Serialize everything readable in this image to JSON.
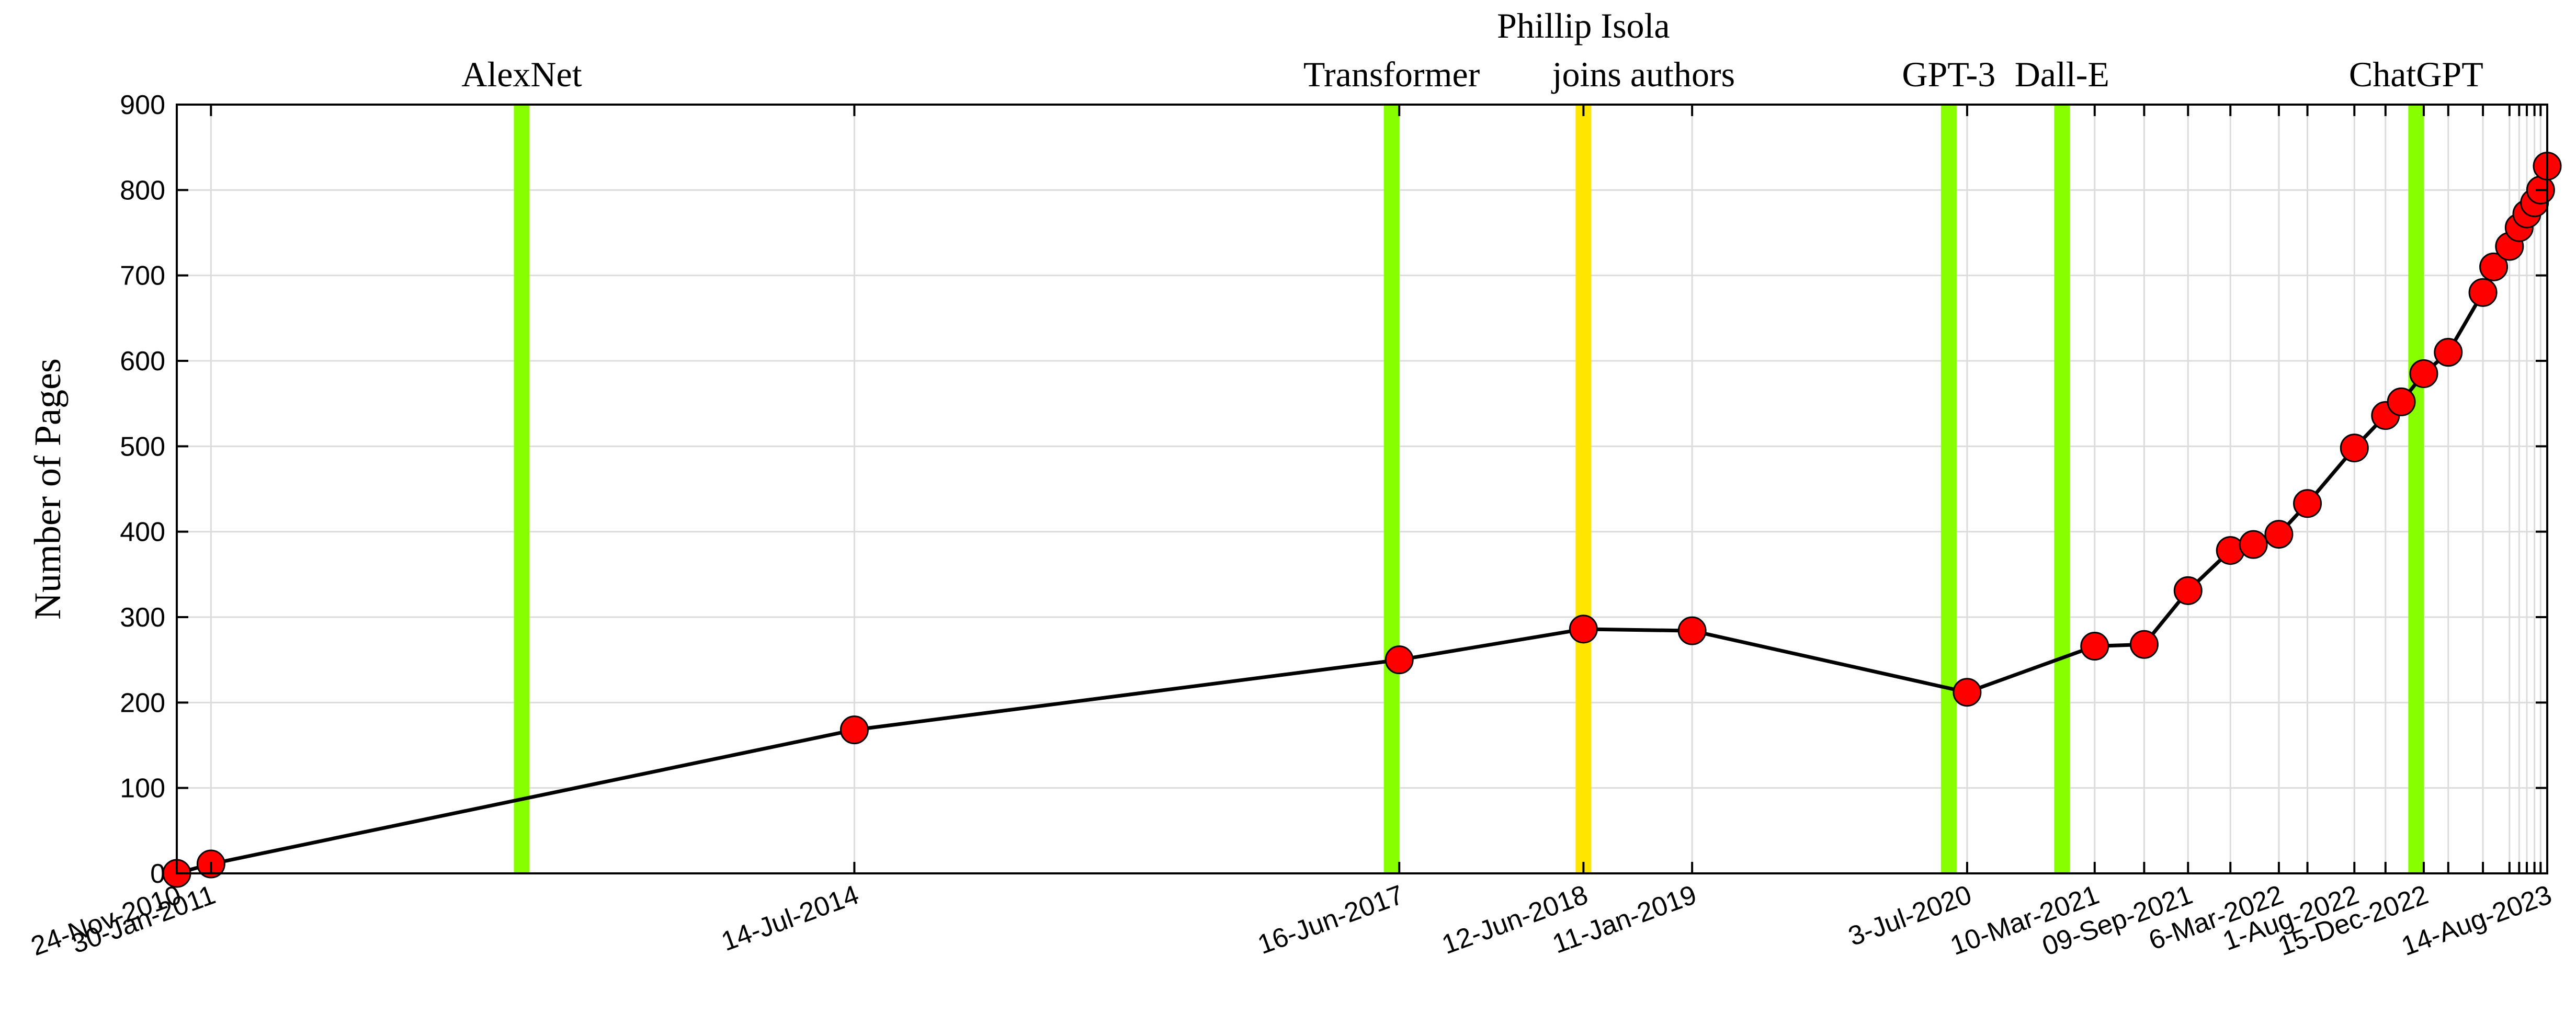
{
  "chart_data": {
    "type": "line",
    "title": "",
    "xlabel": "",
    "ylabel": "Number of Pages",
    "ylim": [
      0,
      900
    ],
    "yticks": [
      0,
      100,
      200,
      300,
      400,
      500,
      600,
      700,
      800,
      900
    ],
    "xlim": [
      "2010-11-24",
      "2023-08-14"
    ],
    "grid": true,
    "x_tick_dates": [
      "2010-11-24",
      "2011-01-30",
      "2014-07-14",
      "2017-06-16",
      "2018-06-12",
      "2019-01-11",
      "2020-07-03",
      "2021-03-10",
      "2021-09-09",
      "2022-03-06",
      "2022-08-01",
      "2022-12-15",
      "2023-08-14"
    ],
    "x_tick_labels": [
      "24-Nov-2010",
      "30-Jan-2011",
      "14-Jul-2014",
      "16-Jun-2017",
      "12-Jun-2018",
      "11-Jan-2019",
      "3-Jul-2020",
      "10-Mar-2021",
      "09-Sep-2021",
      "6-Mar-2022",
      "1-Aug-2022",
      "15-Dec-2022",
      "14-Aug-2023"
    ],
    "minor_x_tick_dates": [
      "2021-06-15",
      "2021-12-01",
      "2022-05-01",
      "2022-10-01",
      "2023-02-01",
      "2023-04-10",
      "2023-06-01",
      "2023-06-20",
      "2023-07-05",
      "2023-07-20",
      "2023-08-01"
    ],
    "series": [
      {
        "x": [
          "2010-11-24",
          "2011-01-30",
          "2014-07-14",
          "2017-06-16",
          "2018-06-12",
          "2019-01-11",
          "2020-07-03",
          "2021-03-10",
          "2021-06-15",
          "2021-09-09",
          "2021-12-01",
          "2022-01-15",
          "2022-03-06",
          "2022-05-01",
          "2022-08-01",
          "2022-10-01",
          "2022-11-01",
          "2022-12-15",
          "2023-02-01",
          "2023-04-10",
          "2023-05-01",
          "2023-06-01",
          "2023-06-20",
          "2023-07-05",
          "2023-07-20",
          "2023-08-01",
          "2023-08-14"
        ],
        "y": [
          0,
          11,
          168,
          250,
          286,
          284,
          212,
          266,
          268,
          331,
          378,
          385,
          397,
          433,
          498,
          536,
          552,
          585,
          610,
          680,
          710,
          734,
          756,
          772,
          785,
          800,
          828
        ]
      }
    ],
    "events": [
      {
        "label": "AlexNet",
        "date": "2012-09-30",
        "color": "#88ff00"
      },
      {
        "label": "Transformer",
        "date": "2017-06-01",
        "color": "#88ff00"
      },
      {
        "label": "Phillip Isola",
        "label2": "joins authors",
        "date": "2018-06-12",
        "color": "#ffe600"
      },
      {
        "label": "GPT-3",
        "date": "2020-05-28",
        "color": "#88ff00"
      },
      {
        "label": "Dall-E",
        "date": "2021-01-05",
        "color": "#88ff00"
      },
      {
        "label": "ChatGPT",
        "date": "2022-11-30",
        "color": "#88ff00"
      }
    ]
  }
}
